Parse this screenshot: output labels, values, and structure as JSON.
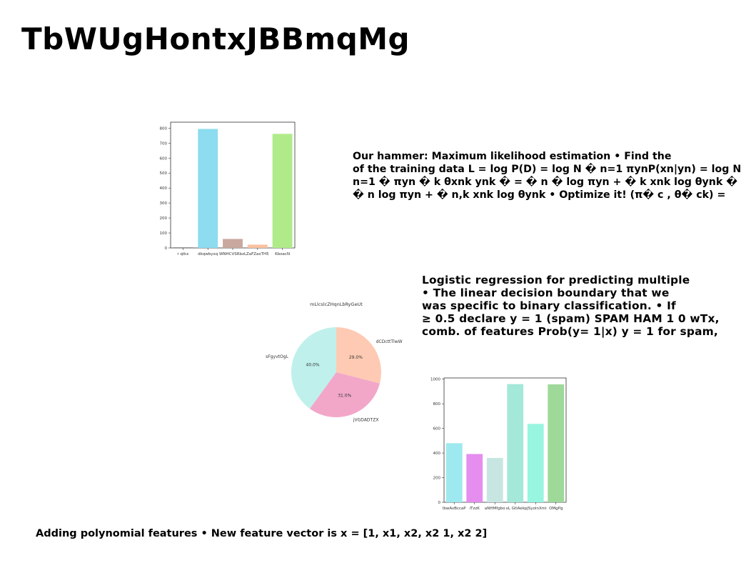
{
  "slide": {
    "title": "TbWUgHontxJBBmqMg",
    "block1_lines": [
      "Our hammer: Maximum likelihood estimation • Find the",
      "of the training data L = log P(D) = log N � n=1 πynP(xn|yn) = log N",
      "n=1 � πyn � k θxnk ynk � = � n � log πyn + � k xnk log θynk �",
      "� n log πyn + � n,k xnk log θynk • Optimize it! (π� c , θ� ck) ="
    ],
    "block2_lines": [
      "Logistic regression for predicting multiple",
      "• The linear decision boundary that we",
      "was specific to binary classification. • If",
      "≥ 0.5 declare y = 1 (spam) SPAM HAM 1 0 wTx,",
      "comb. of features Prob(y= 1|x) y = 1 for spam,"
    ],
    "block3_text": "Adding polynomial features • New feature vector is x = [1, x1, x2, x2 1, x2 2]"
  },
  "chart_data": [
    {
      "type": "bar",
      "categories": [
        "r qtkx",
        "dkqwbyxq",
        "WNHCVSRbzL",
        "ZaFZaxTH5",
        "KboacN"
      ],
      "values": [
        5,
        795,
        60,
        22,
        762
      ],
      "colors": [
        "#999999",
        "#8ddcef",
        "#c9a89f",
        "#f9c2a0",
        "#b0eb8a"
      ],
      "yticks": [
        0,
        100,
        200,
        300,
        400,
        500,
        600,
        700,
        800
      ],
      "ylim": [
        0,
        840
      ]
    },
    {
      "type": "pie",
      "title": "mLlcslcZHqnLbRyGeUt",
      "labels": [
        "dCDcttTlwW",
        "jVGDADTZX",
        "sFgyvtOgL"
      ],
      "values": [
        29.0,
        31.0,
        40.0
      ],
      "pct_labels": [
        "29.0%",
        "31.0%",
        "40.0%"
      ],
      "colors": [
        "#fecab3",
        "#f2a7c9",
        "#bff0ec"
      ]
    },
    {
      "type": "bar",
      "categories": [
        "lbwAvBccaP",
        "iTzzK",
        "aNHMfgbo",
        "xL GtlAek",
        "pJSyolnXmi",
        "OMgPg"
      ],
      "values": [
        480,
        392,
        360,
        960,
        637,
        958
      ],
      "colors": [
        "#9ee9f0",
        "#e68ef0",
        "#c8e6e1",
        "#a3e8d8",
        "#97f5e0",
        "#9ed99a"
      ],
      "yticks": [
        0,
        200,
        400,
        600,
        800,
        1000
      ],
      "ylim": [
        0,
        1010
      ]
    }
  ]
}
